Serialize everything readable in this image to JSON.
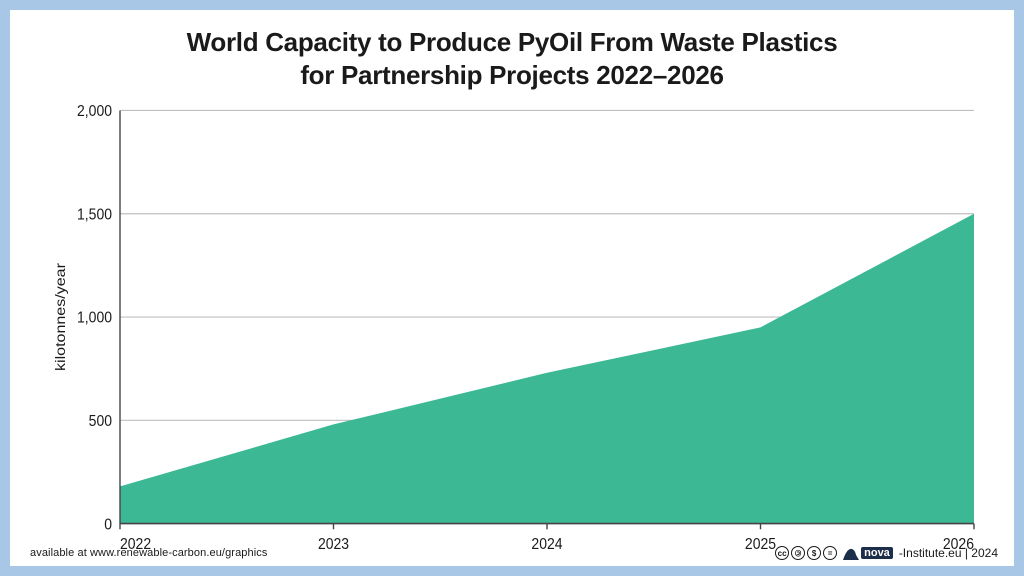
{
  "title_line1": "World Capacity to Produce PyOil From Waste Plastics",
  "title_line2": "for Partnership Projects 2022–2026",
  "title_fontsize": 26,
  "chart": {
    "type": "area",
    "x_values": [
      2022,
      2023,
      2024,
      2025,
      2026
    ],
    "y_values": [
      180,
      480,
      730,
      950,
      1500
    ],
    "x_tick_labels": [
      "2022",
      "2023",
      "2024",
      "2025",
      "2026"
    ],
    "y_ticks": [
      0,
      500,
      1000,
      1500,
      2000
    ],
    "y_tick_labels": [
      "0",
      "500",
      "1,000",
      "1,500",
      "2,000"
    ],
    "ylim": [
      0,
      2000
    ],
    "xlim": [
      2022,
      2026
    ],
    "ylabel": "kilotonnes/year",
    "ylabel_fontsize": 14,
    "tick_fontsize": 14,
    "fill_color": "#3cb894",
    "grid_color": "#bfbfbf",
    "axis_color": "#444444",
    "background_color": "#ffffff"
  },
  "footer": {
    "left_text": "available at www.renewable-carbon.eu/graphics",
    "left_fontsize": 11,
    "attribution": "-Institute.eu | 2024",
    "logo_text": "nova",
    "right_fontsize": 12,
    "cc_labels": [
      "cc",
      "①",
      "$̸",
      "="
    ]
  },
  "colors": {
    "border": "#a8c7e6",
    "text": "#1a1a1a",
    "logo_accent": "#1c2e4a"
  }
}
